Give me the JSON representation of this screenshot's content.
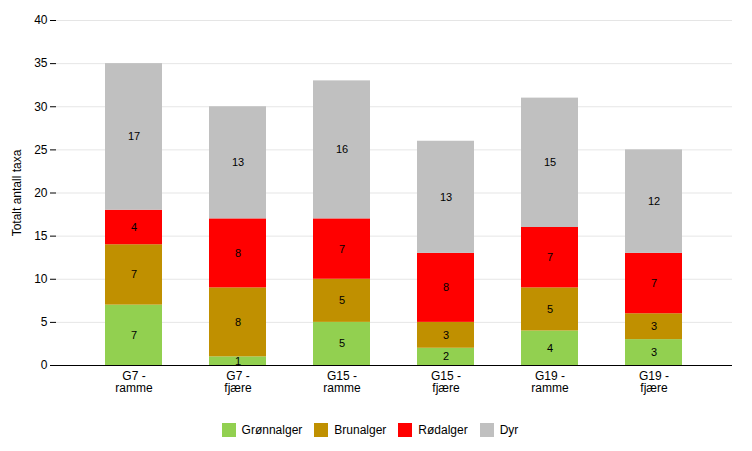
{
  "chart_data": {
    "type": "bar",
    "stacked": true,
    "ylabel": "Totalt antall taxa",
    "categories": [
      "G7 -\nramme",
      "G7 -\nfjære",
      "G15 -\nramme",
      "G15 -\nfjære",
      "G19 -\nramme",
      "G19 -\nfjære"
    ],
    "series": [
      {
        "name": "Grønnalger",
        "color": "#92d050",
        "values": [
          7,
          1,
          5,
          2,
          4,
          3
        ]
      },
      {
        "name": "Brunalger",
        "color": "#c09000",
        "values": [
          7,
          8,
          5,
          3,
          5,
          3
        ]
      },
      {
        "name": "Rødalger",
        "color": "#ff0000",
        "values": [
          4,
          8,
          7,
          8,
          7,
          7
        ]
      },
      {
        "name": "Dyr",
        "color": "#c0c0c0",
        "values": [
          17,
          13,
          16,
          13,
          15,
          12
        ]
      }
    ],
    "ylim": [
      0,
      40
    ],
    "yticks": [
      0,
      5,
      10,
      15,
      20,
      25,
      30,
      35,
      40
    ],
    "grid": true,
    "data_labels": true,
    "legend": "bottom"
  }
}
